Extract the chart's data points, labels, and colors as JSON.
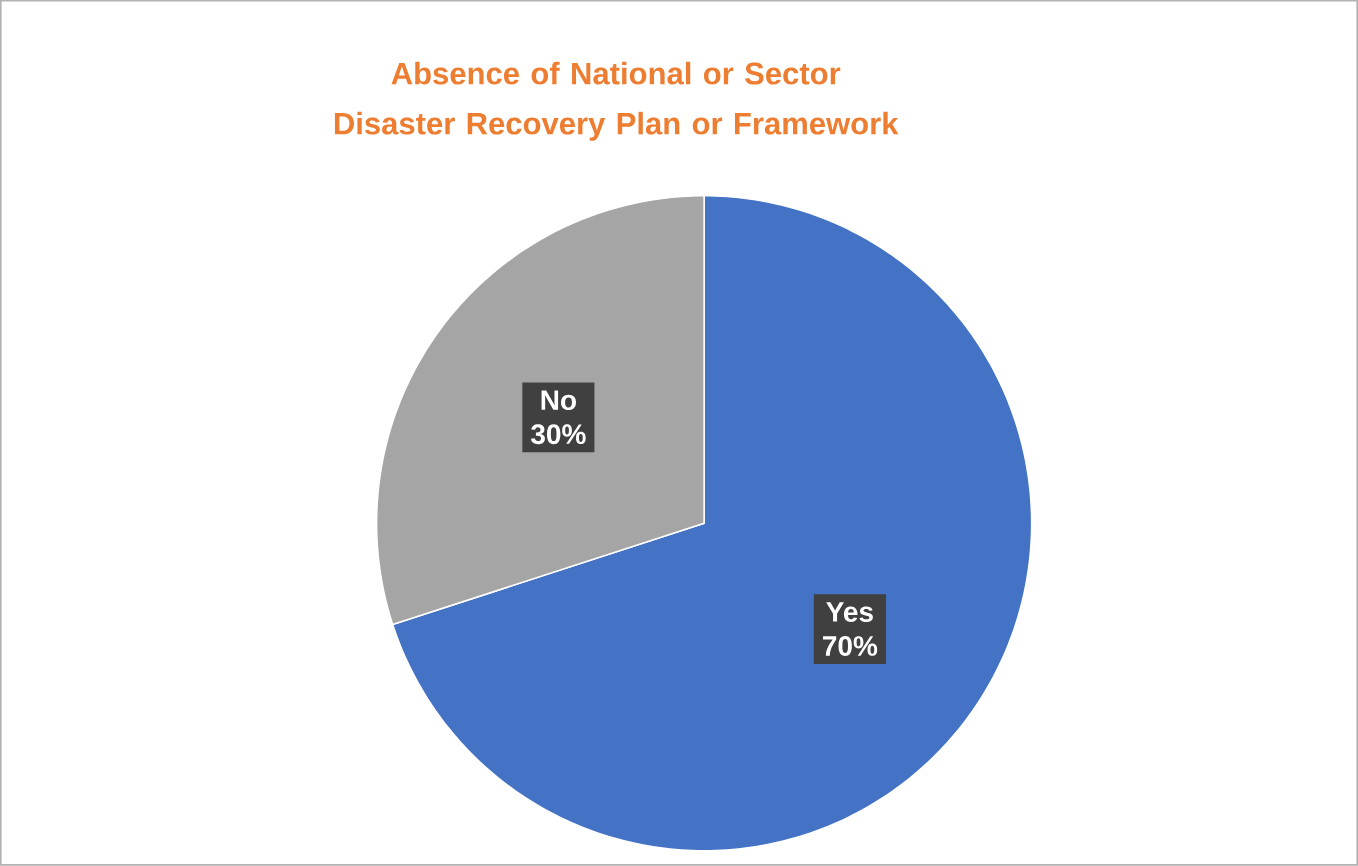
{
  "chart_data": {
    "type": "pie",
    "title": "Absence of National or Sector Disaster Recovery Plan or Framework",
    "categories": [
      "Yes",
      "No"
    ],
    "values": [
      70,
      30
    ],
    "value_labels": [
      "70%",
      "30%"
    ],
    "colors": [
      "#4472c4",
      "#a5a5a5"
    ]
  }
}
